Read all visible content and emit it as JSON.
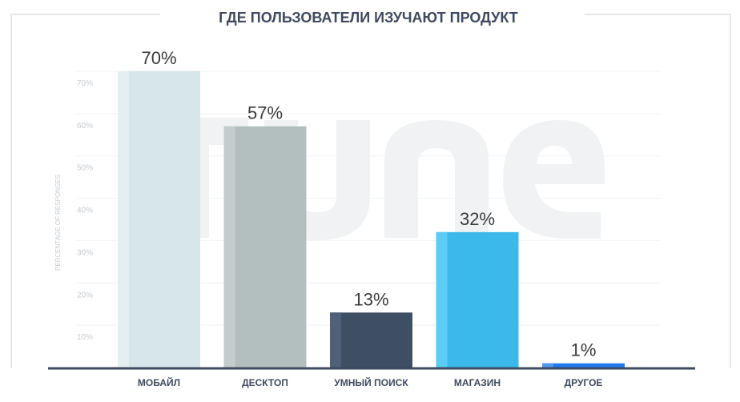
{
  "chart_data": {
    "type": "bar",
    "title": "ГДЕ ПОЛЬЗОВАТЕЛИ ИЗУЧАЮТ ПРОДУКТ",
    "ylabel": "PERCENTAGE OF RESPONSES",
    "xlabel": "",
    "ylim": [
      0,
      70
    ],
    "yticks": [
      "10%",
      "20%",
      "30%",
      "40%",
      "50%",
      "60%",
      "70%"
    ],
    "categories": [
      "МОБАЙЛ",
      "ДЕСКТОП",
      "УМНЫЙ ПОИСК",
      "МАГАЗИН",
      "ДРУГОЕ"
    ],
    "values": [
      70,
      57,
      13,
      32,
      1
    ],
    "value_labels": [
      "70%",
      "57%",
      "13%",
      "32%",
      "1%"
    ],
    "bar_colors": [
      "#d6e6ea",
      "#b3bfbe",
      "#3e4f63",
      "#3ab9ea",
      "#1f79f0"
    ],
    "bar_shade_colors": [
      "#e4eff1",
      "#c3cdcc",
      "#4f6179",
      "#5cccf5",
      "#4f97f5"
    ],
    "grid": true,
    "watermark": "TUNE",
    "colors": {
      "title": "#3e4a5c",
      "axis": "#3e4a5c",
      "grid": "#f0f2f4",
      "tick_label": "#c6cbd1",
      "category_label": "#3e4a5c",
      "value_label": "#3a3a3a",
      "watermark": "#f1f2f3",
      "frame": "#e6e8eb"
    }
  }
}
